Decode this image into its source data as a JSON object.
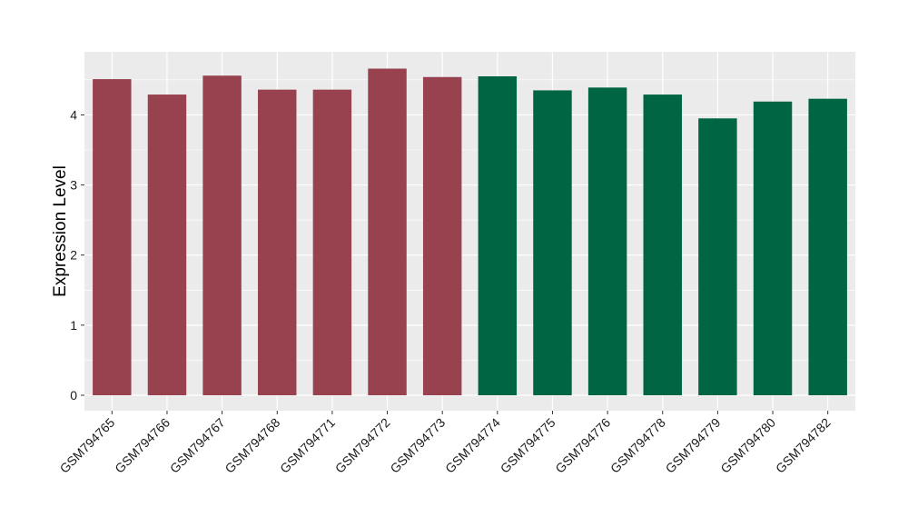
{
  "chart_data": {
    "type": "bar",
    "title": "",
    "xlabel": "",
    "ylabel": "Expression Level",
    "ylim": [
      -0.22,
      4.9
    ],
    "yticks": [
      0,
      1,
      2,
      3,
      4
    ],
    "grid": true,
    "legend": "none",
    "categories": [
      "GSM794765",
      "GSM794766",
      "GSM794767",
      "GSM794768",
      "GSM794771",
      "GSM794772",
      "GSM794773",
      "GSM794774",
      "GSM794775",
      "GSM794776",
      "GSM794778",
      "GSM794779",
      "GSM794780",
      "GSM794782"
    ],
    "values": [
      4.51,
      4.29,
      4.56,
      4.36,
      4.36,
      4.66,
      4.54,
      4.55,
      4.35,
      4.39,
      4.29,
      3.95,
      4.19,
      4.23
    ],
    "groups": [
      "A",
      "A",
      "A",
      "A",
      "A",
      "A",
      "A",
      "B",
      "B",
      "B",
      "B",
      "B",
      "B",
      "B"
    ],
    "group_colors": {
      "A": "#98424f",
      "B": "#006543"
    }
  },
  "style": {
    "panel_background": "#ebebeb",
    "grid_color": "#ffffff"
  }
}
